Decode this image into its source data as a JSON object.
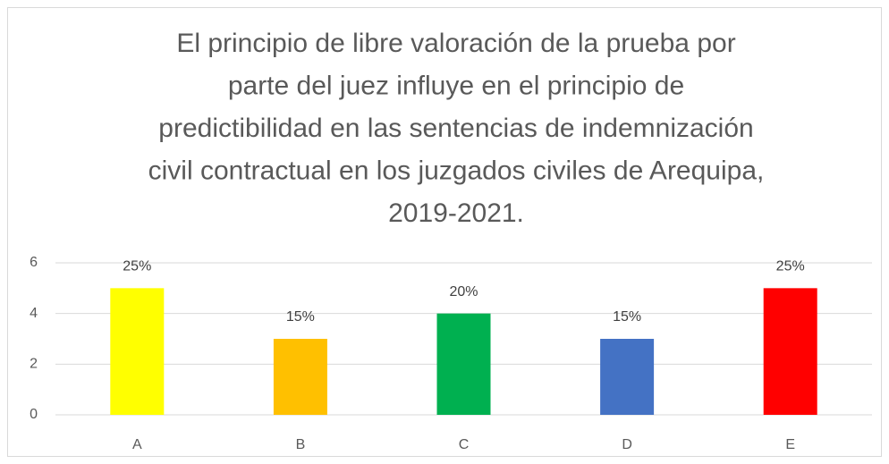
{
  "chart_data": {
    "type": "bar",
    "title": [
      "El principio de libre valoración de la prueba por",
      "parte del juez influye en el principio de",
      "predictibilidad en las sentencias de indemnización",
      "civil contractual en los juzgados civiles de Arequipa,",
      "2019-2021."
    ],
    "categories": [
      "A",
      "B",
      "C",
      "D",
      "E"
    ],
    "values": [
      5,
      3,
      4,
      3,
      5
    ],
    "percent_labels": [
      "25%",
      "15%",
      "20%",
      "15%",
      "25%"
    ],
    "colors": [
      "#ffff00",
      "#ffc000",
      "#00b050",
      "#4472c4",
      "#ff0000"
    ],
    "ylim": [
      0,
      6
    ],
    "yticks": [
      0,
      2,
      4,
      6
    ],
    "grid": true
  }
}
